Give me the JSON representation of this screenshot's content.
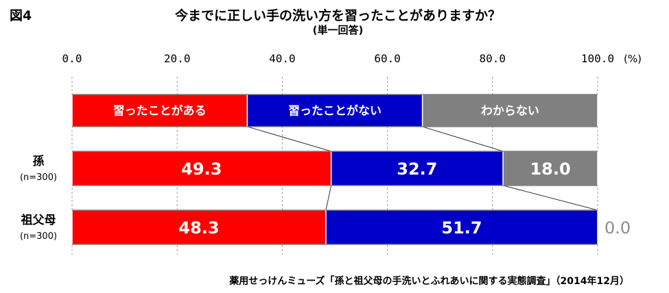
{
  "figure_label": "図4",
  "chart_data": {
    "type": "bar",
    "orientation": "horizontal",
    "stacked": true,
    "title": "今までに正しい手の洗い方を習ったことがありますか？",
    "subtitle": "(単一回答)",
    "unit": "(%)",
    "xlim": [
      0,
      100
    ],
    "x_ticks": [
      "0.0",
      "20.0",
      "40.0",
      "60.0",
      "80.0",
      "100.0"
    ],
    "grid": "vertical dashed",
    "legend_placement": "top bar",
    "series": [
      {
        "name": "習ったことがある",
        "color": "#ff0000",
        "values": [
          49.3,
          48.3
        ],
        "labels": [
          "49.3",
          "48.3"
        ]
      },
      {
        "name": "習ったことがない",
        "color": "#0000c8",
        "values": [
          32.7,
          51.7
        ],
        "labels": [
          "32.7",
          "51.7"
        ]
      },
      {
        "name": "わからない",
        "color": "#808080",
        "values": [
          18.0,
          0.0
        ],
        "labels": [
          "18.0",
          "0.0"
        ]
      }
    ],
    "categories": [
      {
        "name": "孫",
        "n": "(n=300)"
      },
      {
        "name": "祖父母",
        "n": "(n=300)"
      }
    ]
  },
  "source": "薬用せっけんミューズ「孫と祖父母の手洗いとふれあいに関する実態調査」（2014年12月）"
}
